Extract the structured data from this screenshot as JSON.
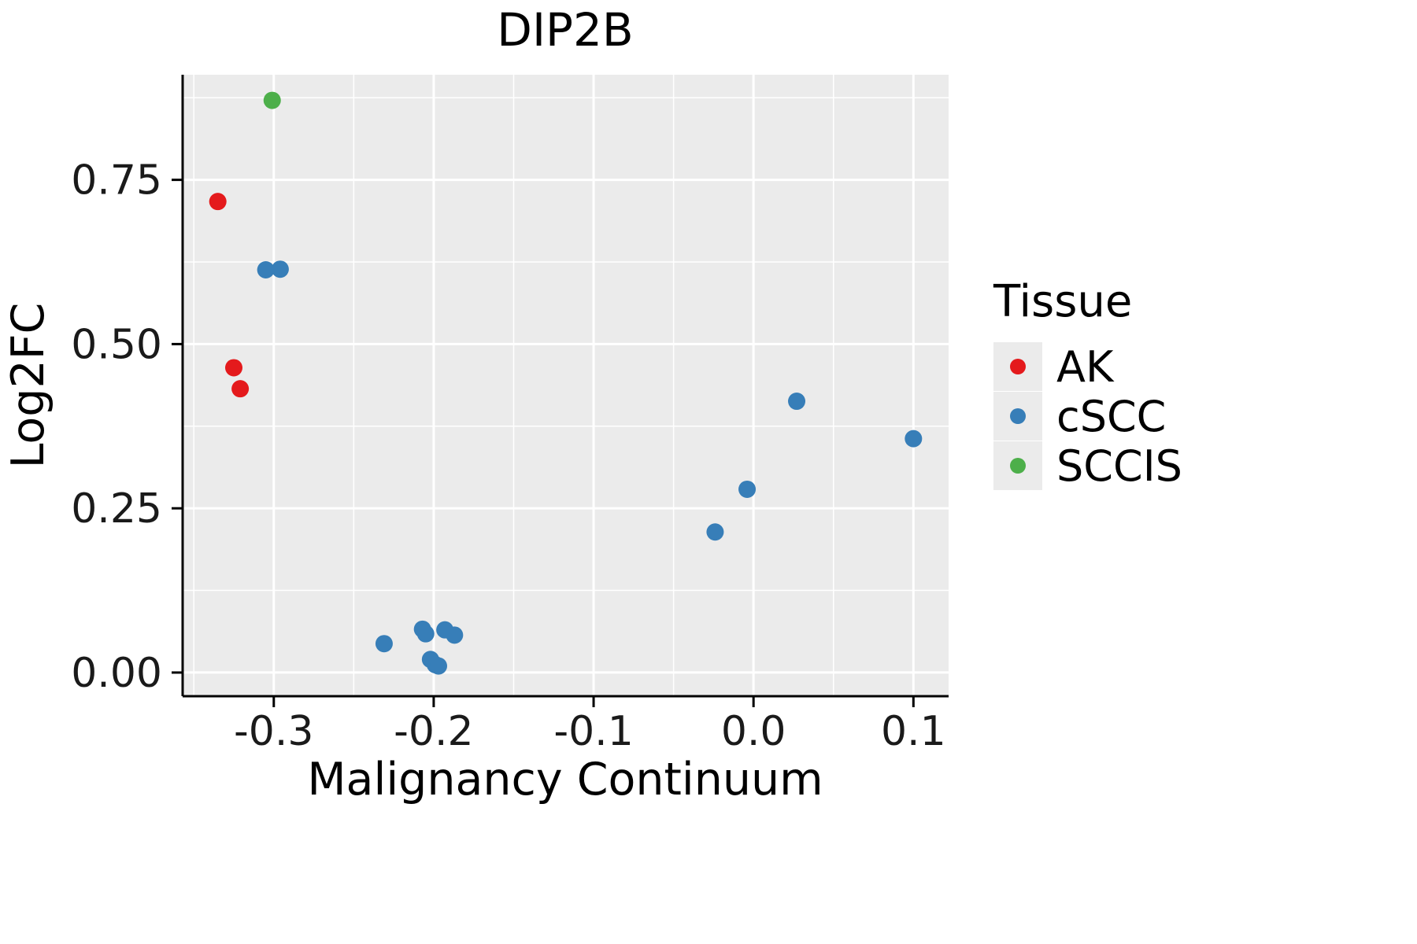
{
  "chart_data": {
    "type": "scatter",
    "title": "DIP2B",
    "xlabel": "Malignancy Continuum",
    "ylabel": "Log2FC",
    "xlim": [
      -0.357,
      0.122
    ],
    "ylim": [
      -0.036,
      0.91
    ],
    "grid": true,
    "panel_bg": "#EBEBEB",
    "grid_color": "#FFFFFF",
    "axis_color": "#000000",
    "xticks": {
      "values": [
        -0.3,
        -0.2,
        -0.1,
        0.0,
        0.1
      ],
      "labels": [
        "-0.3",
        "-0.2",
        "-0.1",
        "0.0",
        "0.1"
      ]
    },
    "yticks": {
      "values": [
        0.0,
        0.25,
        0.5,
        0.75
      ],
      "labels": [
        "0.00",
        "0.25",
        "0.50",
        "0.75"
      ]
    },
    "xminor": [
      -0.35,
      -0.25,
      -0.15,
      -0.05,
      0.05
    ],
    "yminor": [
      0.125,
      0.375,
      0.625,
      0.875
    ],
    "point_radius": 11,
    "legend": {
      "title": "Tissue",
      "position": "right",
      "key_bg": "#EBEBEB"
    },
    "series": [
      {
        "name": "AK",
        "color": "#E41A1C",
        "points": [
          [
            -0.335,
            0.717
          ],
          [
            -0.325,
            0.464
          ],
          [
            -0.321,
            0.432
          ]
        ]
      },
      {
        "name": "cSCC",
        "color": "#377EB8",
        "points": [
          [
            -0.305,
            0.613
          ],
          [
            -0.296,
            0.614
          ],
          [
            -0.231,
            0.044
          ],
          [
            -0.207,
            0.066
          ],
          [
            -0.205,
            0.059
          ],
          [
            -0.193,
            0.065
          ],
          [
            -0.187,
            0.057
          ],
          [
            -0.202,
            0.02
          ],
          [
            -0.199,
            0.012
          ],
          [
            -0.197,
            0.01
          ],
          [
            -0.024,
            0.214
          ],
          [
            -0.004,
            0.279
          ],
          [
            0.027,
            0.413
          ],
          [
            0.1,
            0.356
          ]
        ]
      },
      {
        "name": "SCCIS",
        "color": "#4DAF4A",
        "points": [
          [
            -0.301,
            0.871
          ]
        ]
      }
    ]
  }
}
